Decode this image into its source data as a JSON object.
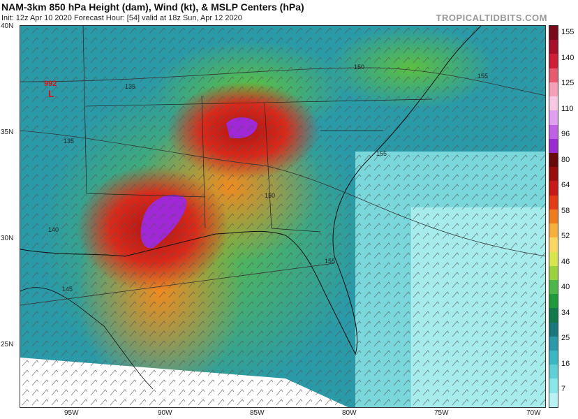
{
  "header": {
    "title": "NAM-3km 850 hPa Height (dam), Wind (kt), & MSLP Centers (hPa)",
    "subtitle": "Init: 12z Apr 10 2020   Forecast Hour: [54]   valid at 18z Sun, Apr 12 2020",
    "brand": "TROPICALTIDBITS.COM"
  },
  "map": {
    "lat_labels": [
      "40N",
      "35N",
      "30N",
      "25N"
    ],
    "lon_labels": [
      "95W",
      "90W",
      "85W",
      "80W",
      "75W",
      "70W"
    ],
    "contour_labels": [
      "135",
      "135",
      "140",
      "145",
      "150",
      "150",
      "155",
      "155",
      "155"
    ],
    "low_center": {
      "symbol": "L",
      "value": "992"
    }
  },
  "colorbar": {
    "labels": [
      "155",
      "140",
      "125",
      "110",
      "96",
      "80",
      "64",
      "58",
      "52",
      "46",
      "40",
      "34",
      "25",
      "16",
      "7"
    ],
    "colors": [
      "#7a0a1a",
      "#a8102a",
      "#d02038",
      "#e85a70",
      "#f5a0b8",
      "#f6c8e2",
      "#e0a0f0",
      "#c060e6",
      "#9a2ad2",
      "#6a0a0a",
      "#9a0e0e",
      "#c81818",
      "#e53a18",
      "#f07a1c",
      "#f6b03a",
      "#f8d860",
      "#d8e64e",
      "#9ad33c",
      "#4db84a",
      "#1e9c3c",
      "#127a4a",
      "#18787e",
      "#2a9aa8",
      "#3ab8c2",
      "#5fd0d6",
      "#8ae6e8",
      "#b8f2f2"
    ]
  }
}
